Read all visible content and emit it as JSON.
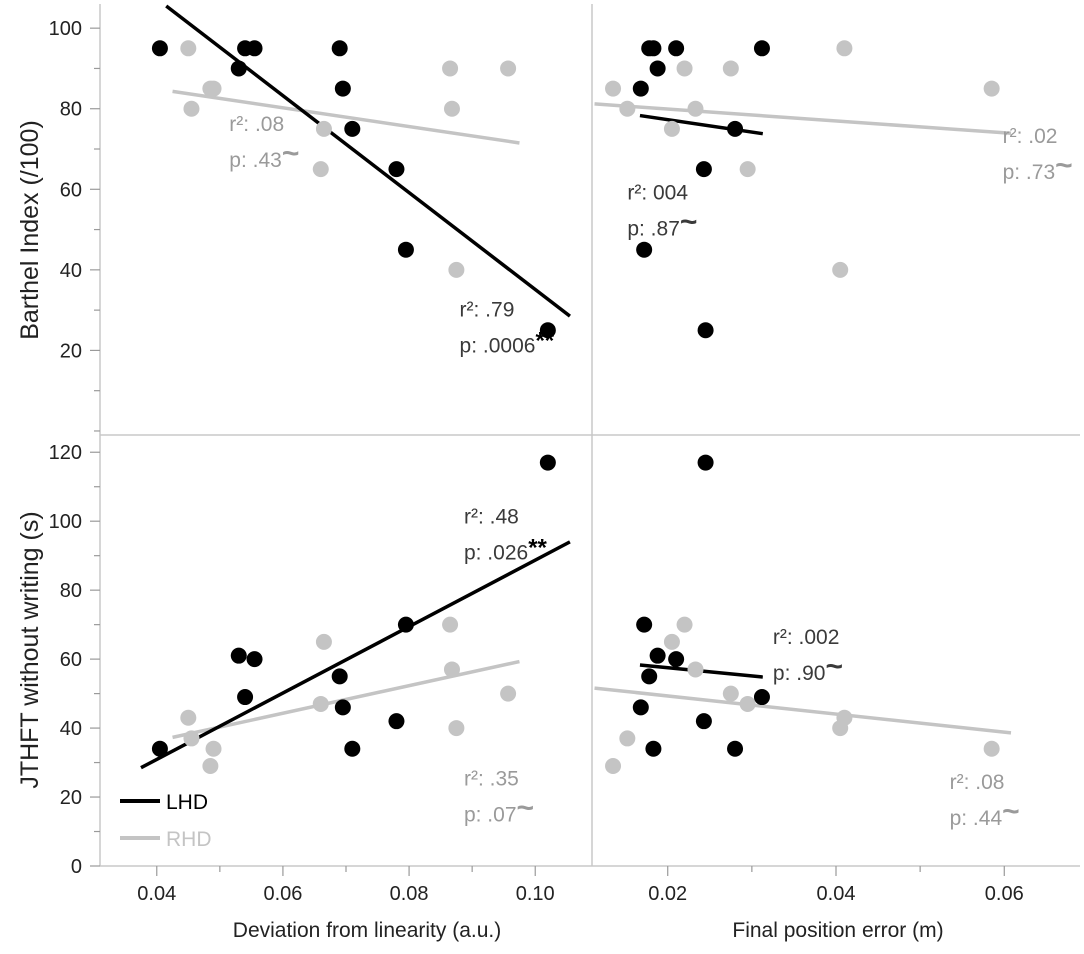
{
  "chart_data": {
    "type": "scatter",
    "colors": {
      "LHD": "#000000",
      "RHD": "#c4c4c4",
      "axis": "#c8c8c8",
      "text": "#222222",
      "stat_lhd": "#3a3a3a",
      "stat_rhd": "#9a9a9a"
    },
    "legend": {
      "position": "bottom-left",
      "entries": [
        {
          "name": "LHD",
          "color": "#000000"
        },
        {
          "name": "RHD",
          "color": "#c4c4c4"
        }
      ]
    },
    "x_axes": [
      {
        "label": "Deviation from linearity (a.u.)",
        "range": [
          0.031,
          0.109
        ],
        "ticks": [
          0.04,
          0.06,
          0.08,
          0.1
        ],
        "tick_labels": [
          "0.04",
          "0.06",
          "0.08",
          "0.10"
        ]
      },
      {
        "label": "Final position error (m)",
        "range": [
          0.011,
          0.069
        ],
        "ticks": [
          0.02,
          0.04,
          0.06
        ],
        "tick_labels": [
          "0.02",
          "0.04",
          "0.06"
        ]
      }
    ],
    "y_axes": [
      {
        "label": "Barthel Index (/100)",
        "range": [
          -1,
          106
        ],
        "ticks": [
          20,
          40,
          60,
          80,
          100
        ],
        "tick_labels": [
          "20",
          "40",
          "60",
          "80",
          "100"
        ]
      },
      {
        "label": "JTHFT without writing (s)",
        "range": [
          0,
          125
        ],
        "ticks": [
          0,
          20,
          40,
          60,
          80,
          100,
          120
        ],
        "tick_labels": [
          "0",
          "20",
          "40",
          "60",
          "80",
          "100",
          "120"
        ]
      }
    ],
    "panels": [
      {
        "row": 0,
        "col": 0,
        "series": [
          {
            "name": "LHD",
            "points": [
              [
                0.0405,
                95
              ],
              [
                0.053,
                90
              ],
              [
                0.054,
                95
              ],
              [
                0.0555,
                95
              ],
              [
                0.069,
                95
              ],
              [
                0.0695,
                85
              ],
              [
                0.071,
                75
              ],
              [
                0.078,
                65
              ],
              [
                0.0795,
                45
              ],
              [
                0.102,
                25
              ]
            ],
            "fit": [
              [
                0.0415,
                105.5
              ],
              [
                0.1055,
                28.5
              ]
            ]
          },
          {
            "name": "RHD",
            "points": [
              [
                0.045,
                95
              ],
              [
                0.0455,
                80
              ],
              [
                0.0485,
                85
              ],
              [
                0.049,
                85
              ],
              [
                0.066,
                65
              ],
              [
                0.0665,
                75
              ],
              [
                0.0865,
                90
              ],
              [
                0.0868,
                80
              ],
              [
                0.0875,
                40
              ],
              [
                0.0957,
                90
              ]
            ],
            "fit": [
              [
                0.0425,
                84.3
              ],
              [
                0.0975,
                71.5
              ]
            ]
          }
        ],
        "annotations": [
          {
            "series": "LHD",
            "r2_text": "r²: .79",
            "p_text": "p: .0006",
            "sig_text": "**",
            "anchor_x": 0.088,
            "anchor_y": 23
          },
          {
            "series": "RHD",
            "r2_text": "r²: .08",
            "p_text": "p: .43",
            "sig_text": "~",
            "anchor_x": 0.0515,
            "anchor_y": 69
          }
        ]
      },
      {
        "row": 0,
        "col": 1,
        "series": [
          {
            "name": "LHD",
            "points": [
              [
                0.0168,
                85
              ],
              [
                0.0172,
                45
              ],
              [
                0.0178,
                95
              ],
              [
                0.0183,
                95
              ],
              [
                0.0188,
                90
              ],
              [
                0.021,
                95
              ],
              [
                0.0243,
                65
              ],
              [
                0.0245,
                25
              ],
              [
                0.028,
                75
              ],
              [
                0.0312,
                95
              ]
            ],
            "fit": [
              [
                0.0167,
                78.3
              ],
              [
                0.0313,
                73.8
              ]
            ]
          },
          {
            "name": "RHD",
            "points": [
              [
                0.0135,
                85
              ],
              [
                0.0152,
                80
              ],
              [
                0.0205,
                75
              ],
              [
                0.022,
                90
              ],
              [
                0.0233,
                80
              ],
              [
                0.0275,
                90
              ],
              [
                0.0295,
                65
              ],
              [
                0.0405,
                40
              ],
              [
                0.041,
                95
              ],
              [
                0.0585,
                85
              ]
            ],
            "fit": [
              [
                0.0113,
                81.2
              ],
              [
                0.0608,
                73.9
              ]
            ]
          }
        ],
        "annotations": [
          {
            "series": "LHD",
            "r2_text": "r²: 004",
            "p_text": "p: .87",
            "sig_text": "~",
            "anchor_x": 0.0152,
            "anchor_y": 52
          },
          {
            "series": "RHD",
            "r2_text": "r²: .02",
            "p_text": "p: .73",
            "sig_text": "~",
            "anchor_x": 0.0598,
            "anchor_y": 66
          }
        ]
      },
      {
        "row": 1,
        "col": 0,
        "series": [
          {
            "name": "LHD",
            "points": [
              [
                0.0405,
                34
              ],
              [
                0.053,
                61
              ],
              [
                0.054,
                49
              ],
              [
                0.0555,
                60
              ],
              [
                0.069,
                55
              ],
              [
                0.0695,
                46
              ],
              [
                0.071,
                34
              ],
              [
                0.078,
                42
              ],
              [
                0.0795,
                70
              ],
              [
                0.102,
                117
              ]
            ],
            "fit": [
              [
                0.0375,
                28.5
              ],
              [
                0.1055,
                94
              ]
            ]
          },
          {
            "name": "RHD",
            "points": [
              [
                0.045,
                43
              ],
              [
                0.0455,
                37
              ],
              [
                0.0485,
                29
              ],
              [
                0.049,
                34
              ],
              [
                0.066,
                47
              ],
              [
                0.0665,
                65
              ],
              [
                0.0865,
                70
              ],
              [
                0.0868,
                57
              ],
              [
                0.0875,
                40
              ],
              [
                0.0957,
                50
              ]
            ],
            "fit": [
              [
                0.0425,
                37.3
              ],
              [
                0.0975,
                59.3
              ]
            ]
          }
        ],
        "annotations": [
          {
            "series": "LHD",
            "r2_text": "r²: .48",
            "p_text": "p: .026",
            "sig_text": "**",
            "anchor_x": 0.0887,
            "anchor_y": 93
          },
          {
            "series": "RHD",
            "r2_text": "r²: .35",
            "p_text": "p: .07",
            "sig_text": "~",
            "anchor_x": 0.0887,
            "anchor_y": 17
          }
        ]
      },
      {
        "row": 1,
        "col": 1,
        "series": [
          {
            "name": "LHD",
            "points": [
              [
                0.0168,
                46
              ],
              [
                0.0172,
                70
              ],
              [
                0.0178,
                55
              ],
              [
                0.0183,
                34
              ],
              [
                0.0188,
                61
              ],
              [
                0.021,
                60
              ],
              [
                0.0243,
                42
              ],
              [
                0.0245,
                117
              ],
              [
                0.028,
                34
              ],
              [
                0.0312,
                49
              ]
            ],
            "fit": [
              [
                0.0167,
                58.3
              ],
              [
                0.0313,
                54.8
              ]
            ]
          },
          {
            "name": "RHD",
            "points": [
              [
                0.0135,
                29
              ],
              [
                0.0152,
                37
              ],
              [
                0.0205,
                65
              ],
              [
                0.022,
                70
              ],
              [
                0.0233,
                57
              ],
              [
                0.0275,
                50
              ],
              [
                0.0295,
                47
              ],
              [
                0.0405,
                40
              ],
              [
                0.041,
                43
              ],
              [
                0.0585,
                34
              ]
            ],
            "fit": [
              [
                0.0113,
                51.6
              ],
              [
                0.0608,
                38.6
              ]
            ]
          }
        ],
        "annotations": [
          {
            "series": "LHD",
            "r2_text": "r²: .002",
            "p_text": "p: .90",
            "sig_text": "~",
            "anchor_x": 0.0325,
            "anchor_y": 58
          },
          {
            "series": "RHD",
            "r2_text": "r²: .08",
            "p_text": "p: .44",
            "sig_text": "~",
            "anchor_x": 0.0535,
            "anchor_y": 16
          }
        ]
      }
    ]
  }
}
